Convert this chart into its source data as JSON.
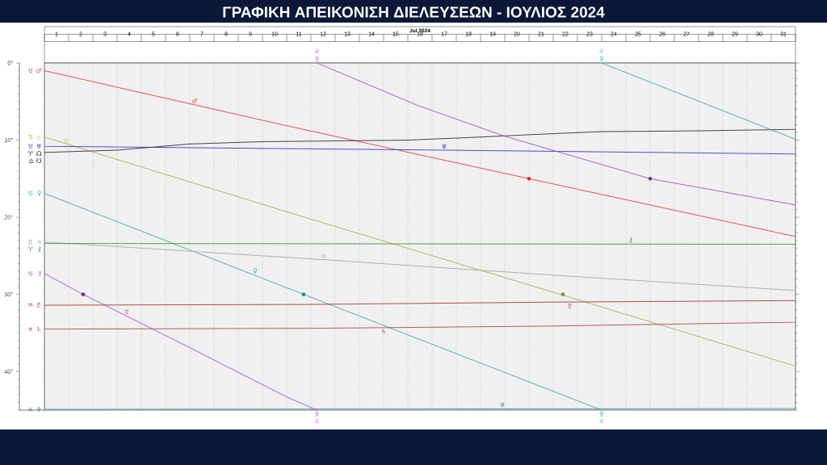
{
  "chart_data": {
    "type": "line",
    "title": "ΓΡΑΦΙΚΗ ΑΠΕΙΚΟΝΙΣΗ ΔΙΕΛΕΥΣΕΩΝ - ΙΟΥΛΙΟΣ 2024",
    "xlabel": "Jul 2024",
    "xlim": [
      1,
      32
    ],
    "ylim": [
      45,
      0
    ],
    "grid": "x",
    "xticks": [
      {
        "value": 1,
        "label": null
      },
      {
        "value": 1.5,
        "label": "1"
      },
      {
        "value": 2,
        "label": null
      },
      {
        "value": 2.5,
        "label": "2"
      },
      {
        "value": 3,
        "label": null
      },
      {
        "value": 3.5,
        "label": "3"
      },
      {
        "value": 4,
        "label": null
      },
      {
        "value": 4.5,
        "label": "4"
      },
      {
        "value": 5,
        "label": null
      },
      {
        "value": 5.5,
        "label": "5"
      },
      {
        "value": 6,
        "label": null
      },
      {
        "value": 6.5,
        "label": "6"
      },
      {
        "value": 7,
        "label": null
      },
      {
        "value": 7.5,
        "label": "7"
      },
      {
        "value": 8,
        "label": null
      },
      {
        "value": 8.5,
        "label": "8"
      },
      {
        "value": 9,
        "label": null
      },
      {
        "value": 9.5,
        "label": "9"
      },
      {
        "value": 10,
        "label": null
      },
      {
        "value": 10.5,
        "label": "10"
      },
      {
        "value": 11,
        "label": null
      },
      {
        "value": 11.5,
        "label": "11"
      },
      {
        "value": 12,
        "label": null
      },
      {
        "value": 12.5,
        "label": "12"
      },
      {
        "value": 13,
        "label": null
      },
      {
        "value": 13.5,
        "label": "13"
      },
      {
        "value": 14,
        "label": null
      },
      {
        "value": 14.5,
        "label": "14"
      },
      {
        "value": 15,
        "label": null
      },
      {
        "value": 15.5,
        "label": "15"
      },
      {
        "value": 16,
        "label": null
      },
      {
        "value": 16.5,
        "label": "16"
      },
      {
        "value": 17,
        "label": null
      },
      {
        "value": 17.5,
        "label": "17"
      },
      {
        "value": 18,
        "label": null
      },
      {
        "value": 18.5,
        "label": "18"
      },
      {
        "value": 19,
        "label": null
      },
      {
        "value": 19.5,
        "label": "19"
      },
      {
        "value": 20,
        "label": null
      },
      {
        "value": 20.5,
        "label": "20"
      },
      {
        "value": 21,
        "label": null
      },
      {
        "value": 21.5,
        "label": "21"
      },
      {
        "value": 22,
        "label": null
      },
      {
        "value": 22.5,
        "label": "22"
      },
      {
        "value": 23,
        "label": null
      },
      {
        "value": 23.5,
        "label": "23"
      },
      {
        "value": 24,
        "label": null
      },
      {
        "value": 24.5,
        "label": "24"
      },
      {
        "value": 25,
        "label": null
      },
      {
        "value": 25.5,
        "label": "25"
      },
      {
        "value": 26,
        "label": null
      },
      {
        "value": 26.5,
        "label": "26"
      },
      {
        "value": 27,
        "label": null
      },
      {
        "value": 27.5,
        "label": "27"
      },
      {
        "value": 28,
        "label": null
      },
      {
        "value": 28.5,
        "label": "28"
      },
      {
        "value": 29,
        "label": null
      },
      {
        "value": 29.5,
        "label": "29"
      },
      {
        "value": 30,
        "label": null
      },
      {
        "value": 30.5,
        "label": "30"
      },
      {
        "value": 31,
        "label": null
      },
      {
        "value": 31.5,
        "label": "31"
      },
      {
        "value": 32,
        "label": null
      }
    ],
    "yticks": [
      {
        "value": 0,
        "label": "0°"
      },
      {
        "value": 1,
        "label": null
      },
      {
        "value": 2,
        "label": null
      },
      {
        "value": 3,
        "label": null
      },
      {
        "value": 4,
        "label": null
      },
      {
        "value": 5,
        "label": null
      },
      {
        "value": 6,
        "label": null
      },
      {
        "value": 7,
        "label": null
      },
      {
        "value": 8,
        "label": null
      },
      {
        "value": 9,
        "label": null
      },
      {
        "value": 10,
        "label": "10°"
      },
      {
        "value": 11,
        "label": null
      },
      {
        "value": 12,
        "label": null
      },
      {
        "value": 13,
        "label": null
      },
      {
        "value": 14,
        "label": null
      },
      {
        "value": 15,
        "label": null
      },
      {
        "value": 16,
        "label": null
      },
      {
        "value": 17,
        "label": null
      },
      {
        "value": 18,
        "label": null
      },
      {
        "value": 19,
        "label": null
      },
      {
        "value": 20,
        "label": "20°"
      },
      {
        "value": 21,
        "label": null
      },
      {
        "value": 22,
        "label": null
      },
      {
        "value": 23,
        "label": null
      },
      {
        "value": 24,
        "label": null
      },
      {
        "value": 25,
        "label": null
      },
      {
        "value": 26,
        "label": null
      },
      {
        "value": 27,
        "label": null
      },
      {
        "value": 28,
        "label": null
      },
      {
        "value": 29,
        "label": null
      },
      {
        "value": 30,
        "label": "30°"
      },
      {
        "value": 31,
        "label": null
      },
      {
        "value": 32,
        "label": null
      },
      {
        "value": 33,
        "label": null
      },
      {
        "value": 34,
        "label": null
      },
      {
        "value": 35,
        "label": null
      },
      {
        "value": 36,
        "label": null
      },
      {
        "value": 37,
        "label": null
      },
      {
        "value": 38,
        "label": null
      },
      {
        "value": 39,
        "label": null
      },
      {
        "value": 40,
        "label": "40°"
      },
      {
        "value": 41,
        "label": null
      },
      {
        "value": 42,
        "label": null
      },
      {
        "value": 43,
        "label": null
      },
      {
        "value": 44,
        "label": null
      },
      {
        "value": 45,
        "label": null
      }
    ],
    "series": [
      {
        "name": "♂",
        "color": "#e84040",
        "x": [
          1,
          10.8,
          21,
          32
        ],
        "values": [
          1.0,
          8.0,
          15,
          22.5
        ]
      },
      {
        "name": "☉",
        "color": "#b4b040",
        "x": [
          1,
          10.8,
          22.4,
          32
        ],
        "values": [
          9.6,
          19.1,
          30.1,
          39.3
        ]
      },
      {
        "name": "♅",
        "color": "#3a3acc",
        "x": [
          1,
          17.5,
          32
        ],
        "values": [
          10.8,
          11.3,
          11.8
        ]
      },
      {
        "name": "☊",
        "color": "#303030",
        "x": [
          1,
          4,
          7,
          10,
          16,
          19,
          21,
          24,
          28,
          32
        ],
        "values": [
          11.6,
          11.3,
          10.5,
          10.2,
          10.0,
          9.6,
          9.3,
          8.9,
          8.8,
          8.6
        ]
      },
      {
        "name": "♀",
        "color": "#40a8b4",
        "x": [
          1,
          11.7,
          24
        ],
        "values": [
          16.9,
          30,
          45
        ]
      },
      {
        "color": "#40a8b4",
        "x": [
          24,
          32
        ],
        "values": [
          0,
          9.9
        ]
      },
      {
        "name": "♃",
        "color": "#a8a8a8",
        "x": [
          1,
          12.5,
          22,
          32
        ],
        "values": [
          23.2,
          25.5,
          27.5,
          29.5
        ]
      },
      {
        "name": "⚷",
        "color": "#3a9a3a",
        "x": [
          1,
          32
        ],
        "values": [
          23.4,
          23.5
        ]
      },
      {
        "name": "☿",
        "color": "#a050c8",
        "x": [
          1,
          2.6,
          7,
          11,
          12.25
        ],
        "values": [
          27.3,
          30,
          36.9,
          43.3,
          45
        ]
      },
      {
        "color": "#a050c8",
        "x": [
          12.25,
          16.4,
          20,
          26,
          32
        ],
        "values": [
          0,
          5.5,
          9.5,
          15,
          18.4
        ]
      },
      {
        "name": "♇",
        "color": "#a83838",
        "x": [
          1,
          12,
          22,
          32
        ],
        "values": [
          31.4,
          31.3,
          31.0,
          30.8
        ]
      },
      {
        "name": "♄",
        "color": "#b04848",
        "x": [
          1,
          12,
          22,
          32
        ],
        "values": [
          34.5,
          34.4,
          34.1,
          33.6
        ]
      },
      {
        "name": "♆",
        "color": "#3a9a9a",
        "x": [
          1,
          32
        ],
        "values": [
          44.9,
          44.8
        ]
      },
      {
        "type": "scatter",
        "marker": "circle",
        "x": [
          2.6,
          11.7,
          21,
          22.4,
          26
        ],
        "values": [
          30,
          30,
          15,
          30,
          15
        ],
        "colors": [
          "#7a2a8a",
          "#1a8a8a",
          "#e02020",
          "#8a8a20",
          "#7a2a8a"
        ]
      }
    ],
    "annotations": [
      {
        "text": "♉",
        "x": 1,
        "y": 1.0
      },
      {
        "text": "♋",
        "x": 1,
        "y": 9.6
      },
      {
        "text": "♉",
        "x": 1,
        "y": 10.8
      },
      {
        "text": "♈",
        "x": 1,
        "y": 11.6
      },
      {
        "text": "♎ ☋",
        "x": 1,
        "y": 11.6
      },
      {
        "text": "♋",
        "x": 1,
        "y": 16.9
      },
      {
        "text": "♊",
        "x": 1,
        "y": 23.2
      },
      {
        "text": "♈",
        "x": 1,
        "y": 23.4
      },
      {
        "text": "♋",
        "x": 1,
        "y": 27.3
      },
      {
        "text": "♒",
        "x": 1,
        "y": 31.4
      },
      {
        "text": "♓",
        "x": 1,
        "y": 34.5
      },
      {
        "text": "♓",
        "x": 1,
        "y": 44.9
      },
      {
        "text": "♂",
        "x": 7.2,
        "y": 5.4
      },
      {
        "text": "☉",
        "x": 1.9,
        "y": 10.5
      },
      {
        "text": "♅",
        "x": 17.5,
        "y": 11.3
      },
      {
        "text": "♀",
        "x": 9.7,
        "y": 27.5
      },
      {
        "text": "♃",
        "x": 12.5,
        "y": 25.5
      },
      {
        "text": "⚷",
        "x": 25.2,
        "y": 23.5
      },
      {
        "text": "☿",
        "x": 4.4,
        "y": 32.8
      },
      {
        "text": "♇",
        "x": 22.7,
        "y": 31.0
      },
      {
        "text": "♄",
        "x": 15,
        "y": 34.3
      },
      {
        "text": "♆",
        "x": 19.9,
        "y": 44.8
      },
      {
        "text": "♌ ☿",
        "x": 12.25,
        "y": 0
      },
      {
        "text": "☿ ♌",
        "x": 12.25,
        "y": 45
      },
      {
        "text": "♌ ♀",
        "x": 24,
        "y": 0
      },
      {
        "text": "♀ ♌",
        "x": 24,
        "y": 45
      }
    ]
  }
}
